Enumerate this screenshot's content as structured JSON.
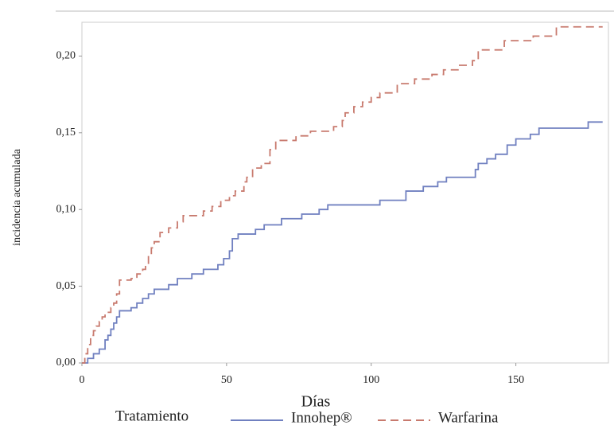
{
  "chart_data": {
    "type": "step",
    "x_label": "Días",
    "y_label": "incidencia acumulada",
    "legend_title": "Tratamiento",
    "xlim": [
      0,
      182
    ],
    "ylim": [
      0,
      0.222
    ],
    "xticks": [
      0,
      50,
      100,
      150
    ],
    "yticks": [
      {
        "value": 0,
        "label": "0,00"
      },
      {
        "value": 0.05,
        "label": "0,05"
      },
      {
        "value": 0.1,
        "label": "0,10"
      },
      {
        "value": 0.15,
        "label": "0,15"
      },
      {
        "value": 0.2,
        "label": "0,20"
      }
    ],
    "series": [
      {
        "name": "Innohep®",
        "color": "#7080c0",
        "linestyle": "solid",
        "x": [
          0,
          2,
          4,
          6,
          8,
          9,
          10,
          11,
          12,
          13,
          17,
          19,
          21,
          23,
          25,
          30,
          33,
          38,
          42,
          47,
          49,
          51,
          52,
          54,
          60,
          63,
          69,
          76,
          82,
          85,
          103,
          112,
          118,
          123,
          126,
          136,
          137,
          140,
          143,
          147,
          150,
          155,
          158,
          175,
          180
        ],
        "values": [
          0,
          0.003,
          0.006,
          0.009,
          0.015,
          0.018,
          0.022,
          0.026,
          0.03,
          0.034,
          0.036,
          0.039,
          0.042,
          0.045,
          0.048,
          0.051,
          0.055,
          0.058,
          0.061,
          0.064,
          0.068,
          0.073,
          0.081,
          0.084,
          0.087,
          0.09,
          0.094,
          0.097,
          0.1,
          0.103,
          0.106,
          0.112,
          0.115,
          0.118,
          0.121,
          0.126,
          0.13,
          0.133,
          0.136,
          0.142,
          0.146,
          0.149,
          0.153,
          0.157,
          0.157
        ]
      },
      {
        "name": "Warfarina",
        "color": "#c87a6e",
        "linestyle": "dashed",
        "x": [
          0,
          1,
          2,
          3,
          4,
          5,
          6,
          7,
          8,
          10,
          11,
          12,
          13,
          17,
          19,
          21,
          22,
          23,
          24,
          25,
          27,
          30,
          33,
          35,
          42,
          45,
          48,
          51,
          53,
          56,
          57,
          59,
          62,
          65,
          67,
          74,
          79,
          87,
          90,
          91,
          94,
          97,
          100,
          103,
          109,
          115,
          121,
          125,
          130,
          135,
          137,
          146,
          156,
          164,
          180
        ],
        "values": [
          0,
          0.006,
          0.012,
          0.018,
          0.021,
          0.024,
          0.027,
          0.03,
          0.033,
          0.036,
          0.039,
          0.045,
          0.054,
          0.055,
          0.058,
          0.061,
          0.064,
          0.07,
          0.075,
          0.079,
          0.085,
          0.088,
          0.092,
          0.096,
          0.099,
          0.102,
          0.106,
          0.109,
          0.112,
          0.118,
          0.121,
          0.127,
          0.13,
          0.139,
          0.145,
          0.148,
          0.151,
          0.154,
          0.158,
          0.163,
          0.167,
          0.17,
          0.173,
          0.176,
          0.182,
          0.185,
          0.188,
          0.191,
          0.194,
          0.197,
          0.204,
          0.21,
          0.213,
          0.219,
          0.219
        ]
      }
    ]
  }
}
